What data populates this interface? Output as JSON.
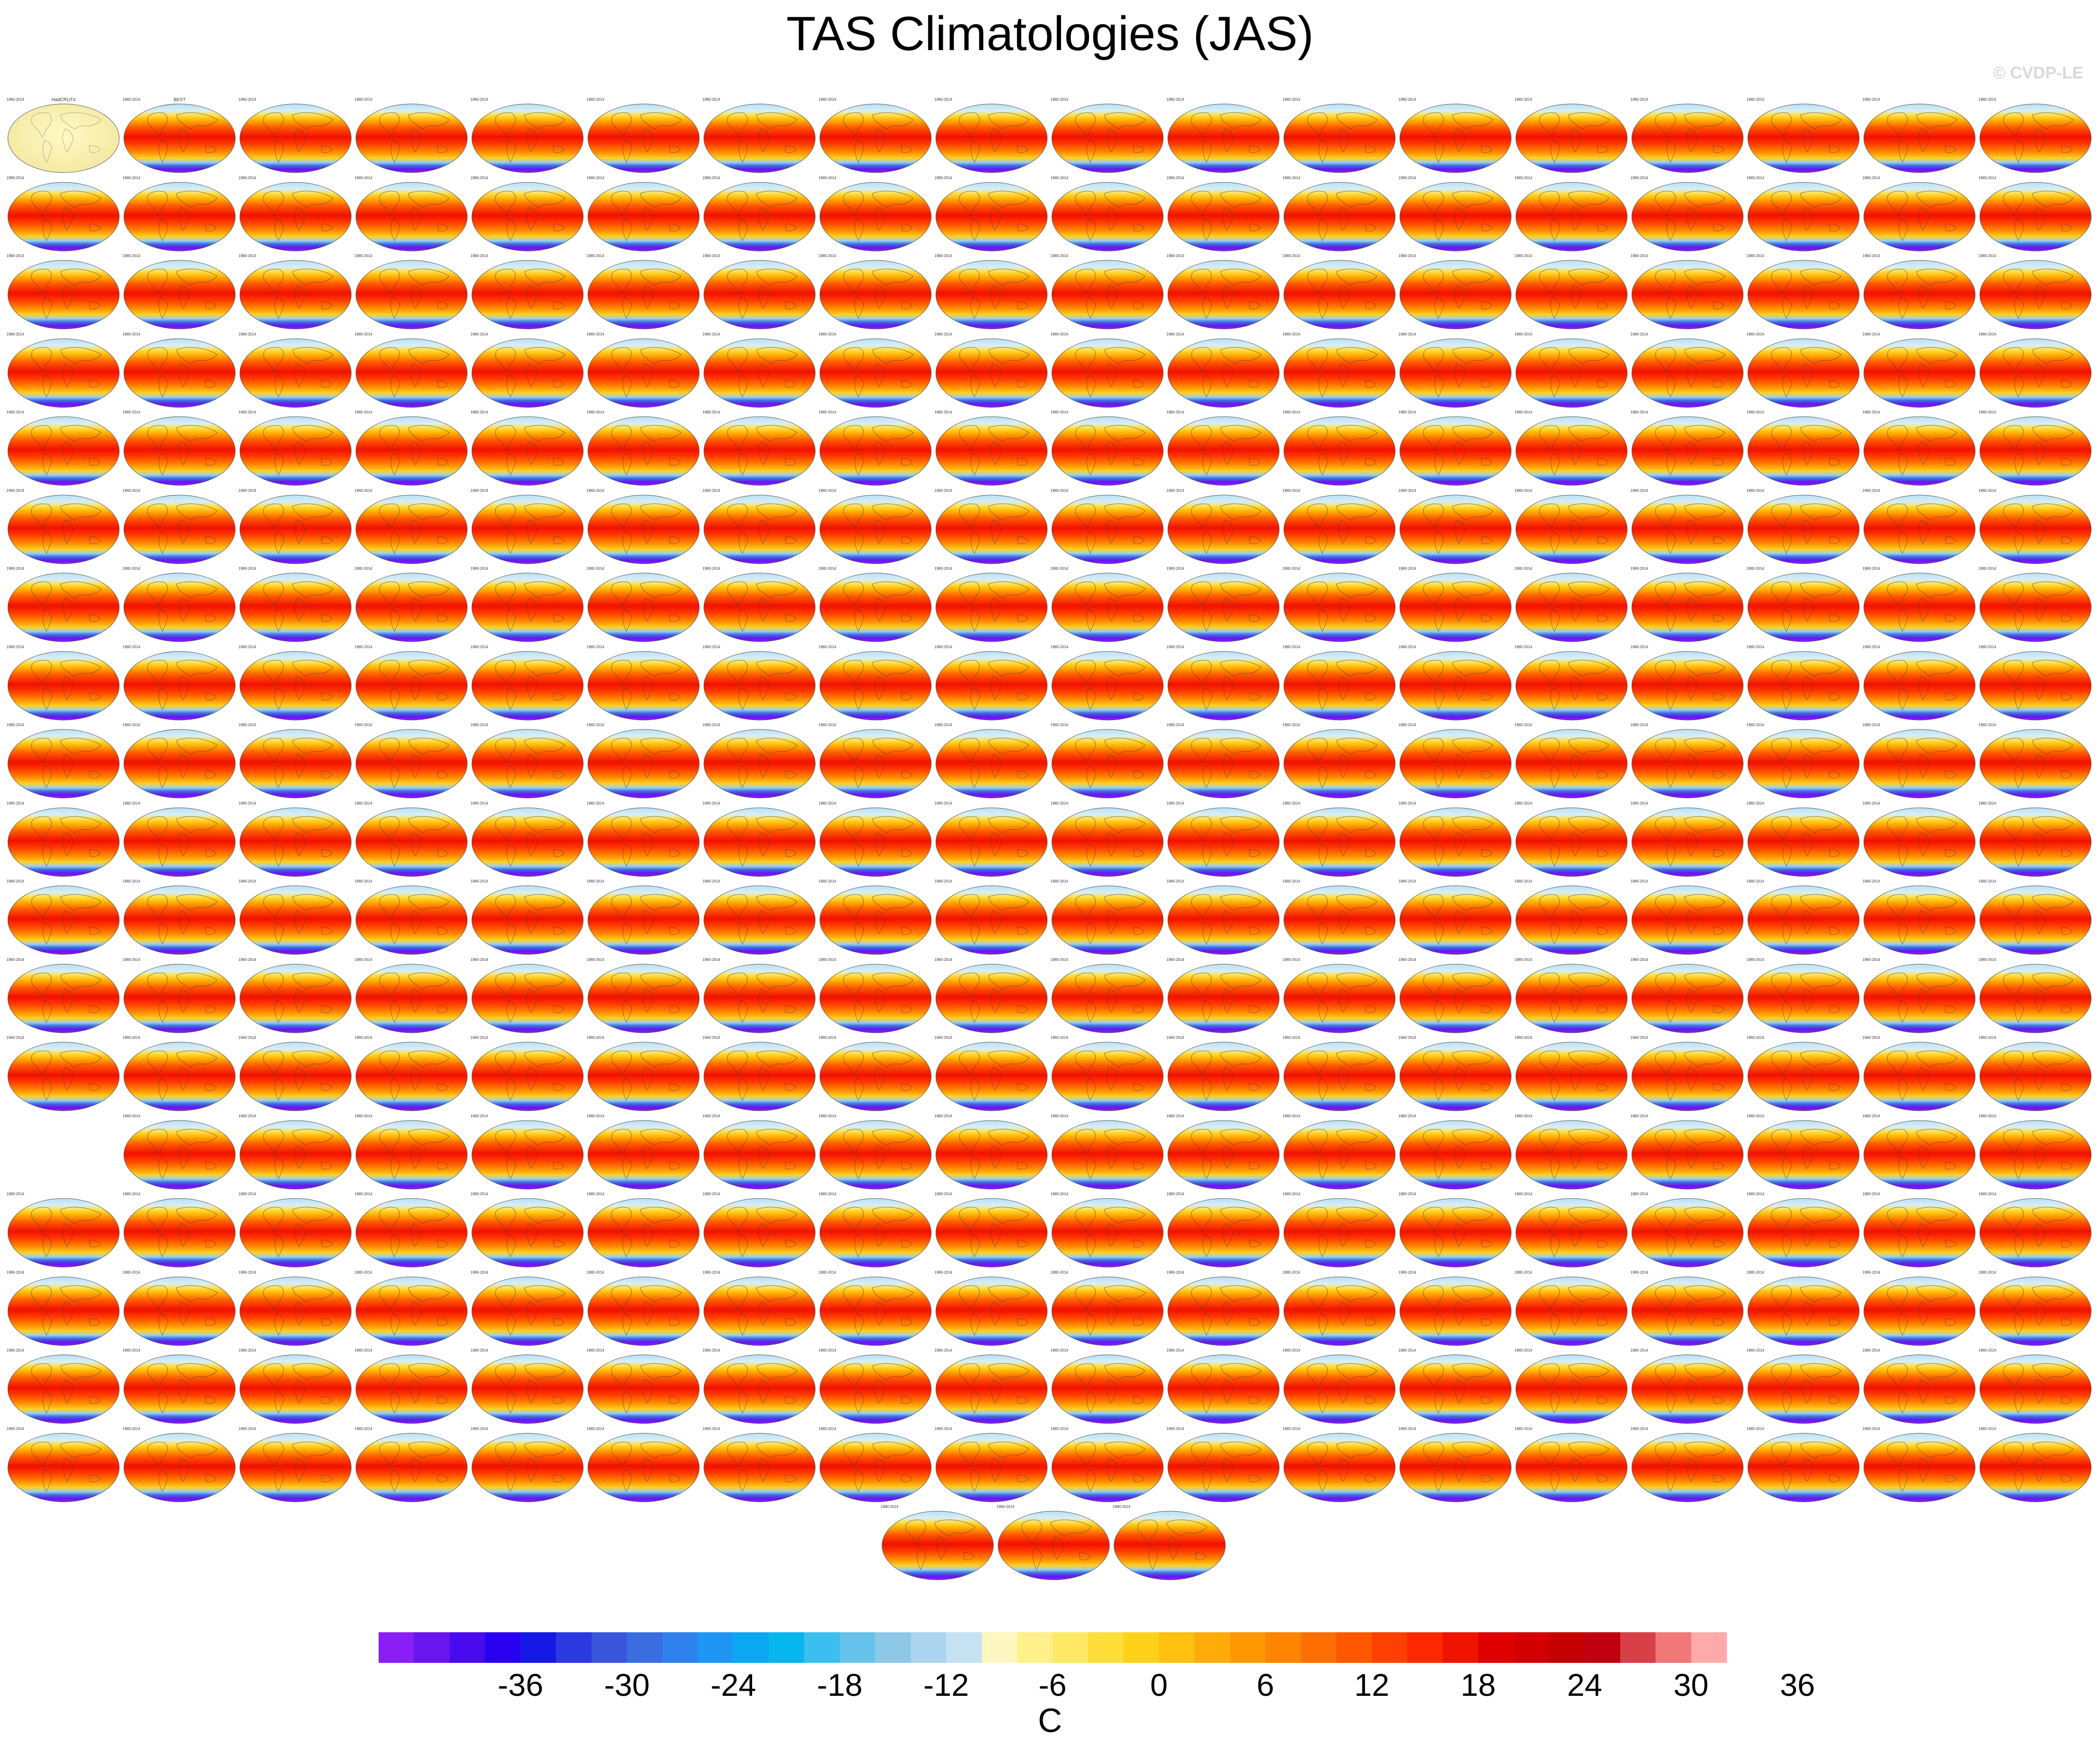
{
  "title": "TAS Climatologies (JAS)",
  "watermark": "© CVDP-LE",
  "colorbar": {
    "units": "C",
    "tick_labels": [
      "-36",
      "-30",
      "-24",
      "-18",
      "-12",
      "-6",
      "0",
      "6",
      "12",
      "18",
      "24",
      "30",
      "36"
    ],
    "colors": [
      "#8b1ef5",
      "#6a14f0",
      "#4a0aee",
      "#2a00f0",
      "#1618e6",
      "#2a3ae0",
      "#3a56dc",
      "#3a6ee0",
      "#2f82ec",
      "#1f96f4",
      "#0aa8f2",
      "#08b6ee",
      "#3cbef0",
      "#66c2ea",
      "#8ec8e8",
      "#acd4ee",
      "#c4e2f2",
      "#fff7c2",
      "#fff08a",
      "#ffe866",
      "#ffde3a",
      "#ffd21a",
      "#ffc010",
      "#ffac08",
      "#ff9800",
      "#ff8400",
      "#ff6e00",
      "#ff5800",
      "#ff4000",
      "#ff2800",
      "#f01400",
      "#e00000",
      "#d20000",
      "#c40000",
      "#c00010",
      "#d84048",
      "#f07878",
      "#ffaaaa"
    ]
  },
  "map_panels": {
    "rows": 19,
    "columns": 18,
    "missing_panels": [
      [
        13,
        0
      ]
    ],
    "bottom_row_panels": 3,
    "first_panel_labels": [
      "HadCRUT4",
      "BEST"
    ],
    "period_label": "1980-2014"
  }
}
